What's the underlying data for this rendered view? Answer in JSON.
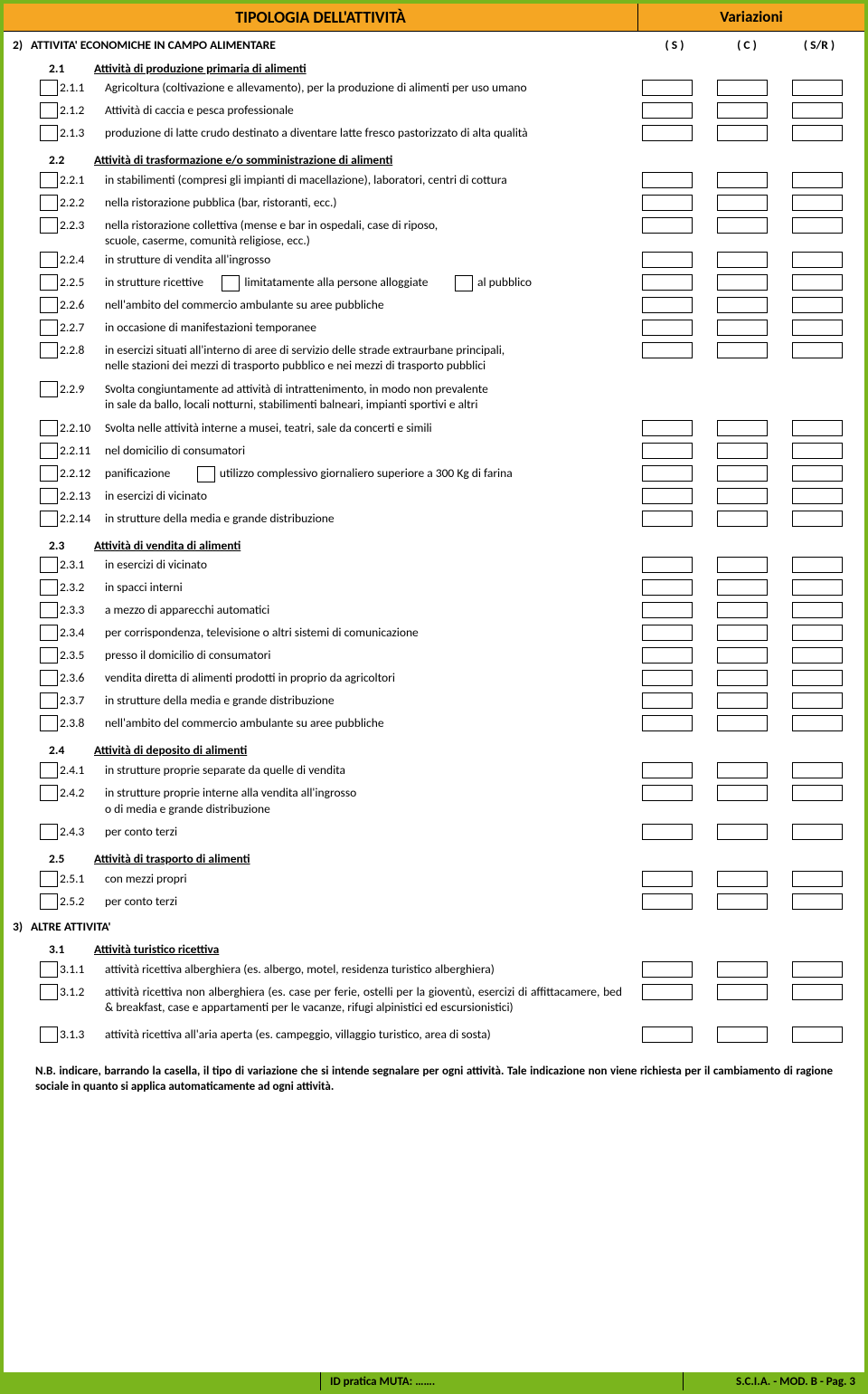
{
  "header": {
    "left": "TIPOLOGIA DELL'ATTIVITÀ",
    "right": "Variazioni"
  },
  "cols": {
    "s": "( S )",
    "c": "( C )",
    "sr": "( S/R )"
  },
  "main2": {
    "num": "2)",
    "title": "ATTIVITA' ECONOMICHE IN CAMPO ALIMENTARE"
  },
  "s21": {
    "num": "2.1",
    "title": "Attività di produzione primaria di alimenti",
    "items": [
      {
        "n": "2.1.1",
        "t": "Agricoltura (coltivazione e allevamento), per la produzione di alimenti per uso umano"
      },
      {
        "n": "2.1.2",
        "t": "Attività di caccia e pesca professionale"
      },
      {
        "n": "2.1.3",
        "t": "produzione di latte crudo destinato a diventare latte fresco pastorizzato di alta qualità"
      }
    ]
  },
  "s22": {
    "num": "2.2",
    "title": "Attività di trasformazione e/o somministrazione di alimenti",
    "i1": {
      "n": "2.2.1",
      "t": "in stabilimenti (compresi gli impianti di macellazione), laboratori, centri di cottura"
    },
    "i2": {
      "n": "2.2.2",
      "t": "nella ristorazione pubblica (bar, ristoranti, ecc.)"
    },
    "i3": {
      "n": "2.2.3",
      "t1": "nella ristorazione collettiva (mense e bar in ospedali, case di riposo,",
      "t2": "scuole, caserme, comunità religiose, ecc.)"
    },
    "i4": {
      "n": "2.2.4",
      "t": "in strutture di vendita all'ingrosso"
    },
    "i5": {
      "n": "2.2.5",
      "t1": "in strutture ricettive",
      "t2": "limitatamente alla persone alloggiate",
      "t3": "al pubblico"
    },
    "i6": {
      "n": "2.2.6",
      "t": "nell'ambito del commercio ambulante su aree pubbliche"
    },
    "i7": {
      "n": "2.2.7",
      "t": "in occasione di manifestazioni temporanee"
    },
    "i8": {
      "n": "2.2.8",
      "t1": "in esercizi situati all'interno di aree di servizio delle strade extraurbane principali,",
      "t2": "nelle stazioni dei mezzi di trasporto pubblico e nei mezzi di trasporto pubblici"
    },
    "i9": {
      "n": "2.2.9",
      "t1": "Svolta congiuntamente ad attività di  intrattenimento, in modo non prevalente",
      "t2": "in sale da ballo, locali notturni, stabilimenti balneari, impianti sportivi e altri"
    },
    "i10": {
      "n": "2.2.10",
      "t": "Svolta nelle attività interne a musei, teatri, sale da concerti e simili"
    },
    "i11": {
      "n": "2.2.11",
      "t": "nel domicilio di consumatori"
    },
    "i12": {
      "n": "2.2.12",
      "t1": "panificazione",
      "t2": "utilizzo complessivo giornaliero superiore a 300 Kg di farina"
    },
    "i13": {
      "n": "2.2.13",
      "t": "in esercizi di vicinato"
    },
    "i14": {
      "n": "2.2.14",
      "t": "in strutture della media e grande distribuzione"
    }
  },
  "s23": {
    "num": "2.3",
    "title": "Attività di vendita di alimenti",
    "items": [
      {
        "n": "2.3.1",
        "t": "in esercizi di vicinato"
      },
      {
        "n": "2.3.2",
        "t": "in spacci interni"
      },
      {
        "n": "2.3.3",
        "t": "a mezzo di apparecchi automatici"
      },
      {
        "n": "2.3.4",
        "t": "per corrispondenza, televisione o altri sistemi di comunicazione"
      },
      {
        "n": "2.3.5",
        "t": "presso il domicilio di consumatori"
      },
      {
        "n": "2.3.6",
        "t": "vendita diretta di alimenti prodotti in proprio da agricoltori"
      },
      {
        "n": "2.3.7",
        "t": "in strutture della media e grande distribuzione"
      },
      {
        "n": "2.3.8",
        "t": "nell'ambito del commercio ambulante su aree pubbliche"
      }
    ]
  },
  "s24": {
    "num": "2.4",
    "title": "Attività di deposito di alimenti",
    "i1": {
      "n": "2.4.1",
      "t": "in strutture proprie separate da quelle di vendita"
    },
    "i2": {
      "n": "2.4.2",
      "t1": "in strutture proprie interne alla vendita all'ingrosso",
      "t2": "o di media e grande distribuzione"
    },
    "i3": {
      "n": "2.4.3",
      "t": "per conto terzi"
    }
  },
  "s25": {
    "num": "2.5",
    "title": "Attività di trasporto di alimenti",
    "items": [
      {
        "n": "2.5.1",
        "t": "con mezzi propri"
      },
      {
        "n": "2.5.2",
        "t": "per conto terzi"
      }
    ]
  },
  "main3": {
    "num": "3)",
    "title": "ALTRE ATTIVITA'"
  },
  "s31": {
    "num": "3.1",
    "title": "Attività turistico ricettiva ",
    "i1": {
      "n": "3.1.1",
      "t": "attività ricettiva alberghiera (es. albergo, motel, residenza turistico alberghiera)"
    },
    "i2": {
      "n": "3.1.2",
      "t": "attività ricettiva non alberghiera (es. case per ferie, ostelli per la gioventù, esercizi di affittacamere, bed & breakfast, case e appartamenti per le vacanze, rifugi alpinistici ed escursionistici)"
    },
    "i3": {
      "n": "3.1.3",
      "t": "attività ricettiva all'aria aperta (es. campeggio, villaggio turistico, area di sosta)"
    }
  },
  "note": "N.B. indicare, barrando la casella, il tipo di variazione che si intende segnalare per ogni attività. Tale indicazione non viene richiesta per il cambiamento di ragione sociale in quanto si applica automaticamente ad ogni attività.",
  "footer": {
    "mid": "ID pratica MUTA: …….",
    "right": "S.C.I.A. - MOD. B - Pag. 3"
  }
}
